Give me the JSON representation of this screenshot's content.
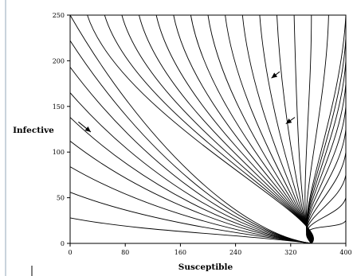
{
  "chart_data": {
    "type": "line",
    "title": "",
    "xlabel": "Susceptible",
    "ylabel": "Infective",
    "xlim": [
      0,
      400
    ],
    "ylim": [
      0,
      250
    ],
    "x_ticks": [
      "0",
      "80",
      "160",
      "240",
      "320",
      "400"
    ],
    "y_ticks": [
      "0",
      "50",
      "100",
      "150",
      "200",
      "250"
    ],
    "equilibrium": {
      "x": 350,
      "y": 0
    },
    "trajectory_starts": [
      {
        "x": 0,
        "y": 28
      },
      {
        "x": 0,
        "y": 56
      },
      {
        "x": 0,
        "y": 84
      },
      {
        "x": 0,
        "y": 112
      },
      {
        "x": 0,
        "y": 138
      },
      {
        "x": 0,
        "y": 165
      },
      {
        "x": 0,
        "y": 193
      },
      {
        "x": 0,
        "y": 222
      },
      {
        "x": 0,
        "y": 250
      },
      {
        "x": 25,
        "y": 250
      },
      {
        "x": 50,
        "y": 250
      },
      {
        "x": 75,
        "y": 250
      },
      {
        "x": 100,
        "y": 250
      },
      {
        "x": 125,
        "y": 250
      },
      {
        "x": 150,
        "y": 250
      },
      {
        "x": 175,
        "y": 250
      },
      {
        "x": 200,
        "y": 250
      },
      {
        "x": 225,
        "y": 250
      },
      {
        "x": 250,
        "y": 250
      },
      {
        "x": 275,
        "y": 250
      },
      {
        "x": 300,
        "y": 250
      },
      {
        "x": 325,
        "y": 250
      },
      {
        "x": 350,
        "y": 250
      },
      {
        "x": 375,
        "y": 250
      },
      {
        "x": 400,
        "y": 250
      },
      {
        "x": 400,
        "y": 225
      },
      {
        "x": 400,
        "y": 200
      },
      {
        "x": 400,
        "y": 175
      },
      {
        "x": 400,
        "y": 150
      },
      {
        "x": 400,
        "y": 125
      },
      {
        "x": 400,
        "y": 100
      },
      {
        "x": 400,
        "y": 75
      },
      {
        "x": 400,
        "y": 50
      },
      {
        "x": 400,
        "y": 25
      }
    ],
    "direction_arrows": [
      {
        "from": {
          "x": 12,
          "y": 133
        },
        "to": {
          "x": 30,
          "y": 122
        }
      },
      {
        "from": {
          "x": 304,
          "y": 188
        },
        "to": {
          "x": 292,
          "y": 181
        }
      },
      {
        "from": {
          "x": 326,
          "y": 138
        },
        "to": {
          "x": 313,
          "y": 131
        }
      }
    ],
    "grid": false,
    "legend": "none"
  }
}
